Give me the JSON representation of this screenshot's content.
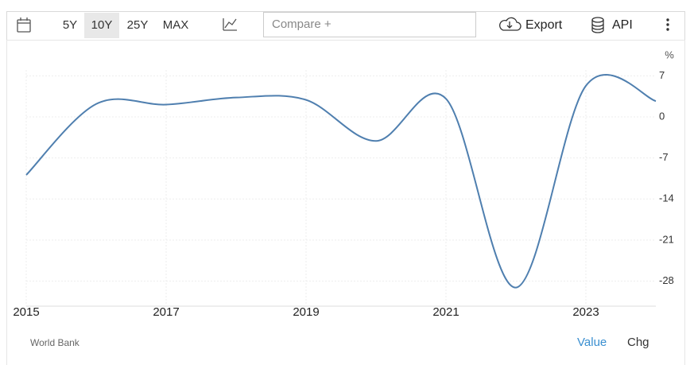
{
  "toolbar": {
    "ranges": [
      "5Y",
      "10Y",
      "25Y",
      "MAX"
    ],
    "compare": "Compare +",
    "export": "Export",
    "api": "API"
  },
  "chart_data": {
    "type": "line",
    "unit": "%",
    "x": [
      2015,
      2016,
      2017,
      2018,
      2019,
      2020,
      2021,
      2022,
      2023,
      2024
    ],
    "series": [
      {
        "name": "Value",
        "color": "#4f7faf",
        "values": [
          -9.9,
          2.2,
          2.1,
          3.3,
          2.9,
          -4.1,
          3.1,
          -29.1,
          5.3,
          2.7
        ]
      }
    ],
    "xlim": [
      2015,
      2024
    ],
    "xticks": [
      2015,
      2017,
      2019,
      2021,
      2023
    ],
    "ylim": [
      -32,
      8
    ],
    "yticks": [
      7,
      0,
      -7,
      -14,
      -21,
      -28
    ],
    "grid": true
  },
  "footer": {
    "source": "World Bank",
    "value": "Value",
    "chg": "Chg"
  }
}
